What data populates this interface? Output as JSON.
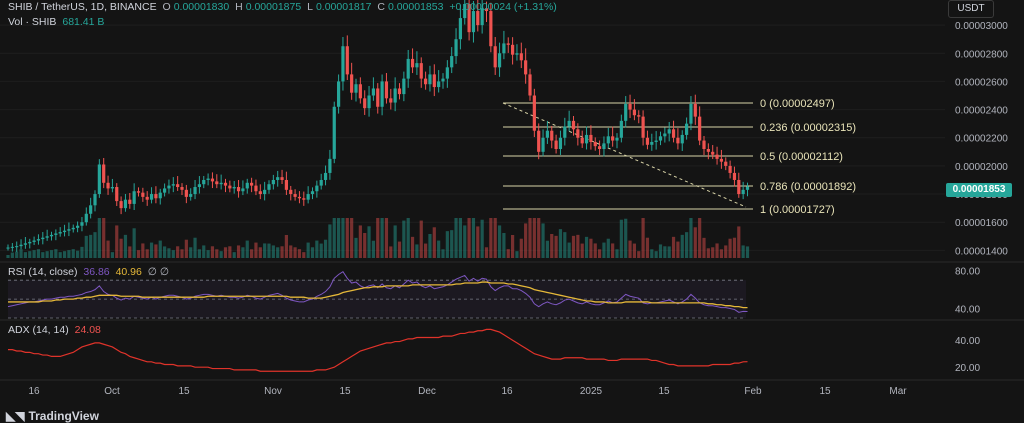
{
  "header": {
    "symbol": "SHIB / TetherUS, 1D, BINANCE",
    "o_label": "O",
    "o_value": "0.00001830",
    "h_label": "H",
    "h_value": "0.00001875",
    "l_label": "L",
    "l_value": "0.00001817",
    "c_label": "C",
    "c_value": "0.00001853",
    "change": "+0.00000024 (+1.31%)",
    "vol_label": "Vol · SHIB",
    "vol_value": "681.41 B"
  },
  "currency_button": "USDT",
  "last_price_tag": "0.00001853",
  "rsi_header": {
    "label": "RSI (14, close)",
    "value": "36.86",
    "ma": "40.96",
    "extra": "∅ ∅"
  },
  "adx_header": {
    "label": "ADX (14, 14)",
    "value": "24.08"
  },
  "brand": "TradingView",
  "colors": {
    "up": "#26a69a",
    "down": "#ef5350",
    "fib": "#d8d3a7",
    "rsi": "#7e57c2",
    "rsi_ma": "#e5b839",
    "adx": "#e0332a"
  },
  "chart_data": [
    {
      "type": "candlestick",
      "title": "SHIB / TetherUS, 1D, BINANCE",
      "y_ticks": [
        "0.00003000",
        "0.00002800",
        "0.00002600",
        "0.00002400",
        "0.00002200",
        "0.00002000",
        "0.00001800",
        "0.00001600",
        "0.00001400"
      ],
      "x_ticks": [
        "16",
        "Oct",
        "15",
        "Nov",
        "15",
        "Dec",
        "16",
        "2025",
        "15",
        "Feb",
        "15",
        "Mar"
      ],
      "ylim": [
        1.36e-05,
        3.15e-05
      ],
      "close_series": [
        1.42e-05,
        1.425e-05,
        1.43e-05,
        1.44e-05,
        1.45e-05,
        1.46e-05,
        1.47e-05,
        1.48e-05,
        1.49e-05,
        1.5e-05,
        1.51e-05,
        1.52e-05,
        1.53e-05,
        1.54e-05,
        1.55e-05,
        1.56e-05,
        1.575e-05,
        1.6e-05,
        1.66e-05,
        1.72e-05,
        1.8e-05,
        2.01e-05,
        1.88e-05,
        1.84e-05,
        1.85e-05,
        1.75e-05,
        1.7e-05,
        1.76e-05,
        1.73e-05,
        1.82e-05,
        1.81e-05,
        1.78e-05,
        1.76e-05,
        1.8e-05,
        1.77e-05,
        1.81e-05,
        1.84e-05,
        1.86e-05,
        1.87e-05,
        1.85e-05,
        1.83e-05,
        1.78e-05,
        1.8e-05,
        1.85e-05,
        1.87e-05,
        1.9e-05,
        1.91e-05,
        1.89e-05,
        1.87e-05,
        1.88e-05,
        1.86e-05,
        1.84e-05,
        1.85e-05,
        1.82e-05,
        1.84e-05,
        1.88e-05,
        1.86e-05,
        1.82e-05,
        1.8e-05,
        1.83e-05,
        1.87e-05,
        1.9e-05,
        1.92e-05,
        1.9e-05,
        1.83e-05,
        1.8e-05,
        1.78e-05,
        1.77e-05,
        1.76e-05,
        1.8e-05,
        1.82e-05,
        1.86e-05,
        1.9e-05,
        1.95e-05,
        2.05e-05,
        2.42e-05,
        2.6e-05,
        2.85e-05,
        2.65e-05,
        2.52e-05,
        2.58e-05,
        2.48e-05,
        2.41e-05,
        2.5e-05,
        2.55e-05,
        2.42e-05,
        2.6e-05,
        2.48e-05,
        2.45e-05,
        2.55e-05,
        2.51e-05,
        2.62e-05,
        2.76e-05,
        2.7e-05,
        2.73e-05,
        2.62e-05,
        2.58e-05,
        2.65e-05,
        2.56e-05,
        2.6e-05,
        2.62e-05,
        2.7e-05,
        2.78e-05,
        2.9e-05,
        3.05e-05,
        3.15e-05,
        2.95e-05,
        3.1e-05,
        3e-05,
        3.12e-05,
        3.1e-05,
        2.85e-05,
        2.7e-05,
        2.8e-05,
        2.87e-05,
        2.86e-05,
        2.79e-05,
        2.8e-05,
        2.75e-05,
        2.65e-05,
        2.5e-05,
        2.25e-05,
        2.1e-05,
        2.2e-05,
        2.25e-05,
        2.18e-05,
        2.12e-05,
        2.2e-05,
        2.28e-05,
        2.32e-05,
        2.26e-05,
        2.2e-05,
        2.16e-05,
        2.22e-05,
        2.17e-05,
        2.14e-05,
        2.12e-05,
        2.16e-05,
        2.21e-05,
        2.18e-05,
        2.2e-05,
        2.32e-05,
        2.44e-05,
        2.4e-05,
        2.36e-05,
        2.35e-05,
        2.2e-05,
        2.15e-05,
        2.17e-05,
        2.18e-05,
        2.21e-05,
        2.23e-05,
        2.26e-05,
        2.2e-05,
        2.16e-05,
        2.22e-05,
        2.3e-05,
        2.44e-05,
        2.35e-05,
        2.18e-05,
        2.12e-05,
        2.1e-05,
        2.08e-05,
        2.05e-05,
        2.03e-05,
        2e-05,
        1.95e-05,
        1.9e-05,
        1.8e-05,
        1.83e-05,
        1.853e-05
      ]
    },
    {
      "type": "line",
      "title": "RSI (14, close)",
      "y_ticks": [
        "80.00",
        "40.00"
      ],
      "ylim": [
        30,
        85
      ],
      "series": [
        {
          "name": "RSI",
          "values": [
            42,
            43,
            44,
            45,
            46,
            47,
            47,
            48,
            49,
            50,
            50,
            51,
            52,
            52,
            53,
            53,
            54,
            55,
            57,
            58,
            60,
            64,
            58,
            55,
            54,
            51,
            49,
            51,
            50,
            53,
            52,
            51,
            50,
            52,
            50,
            52,
            53,
            54,
            54,
            53,
            52,
            50,
            51,
            53,
            54,
            55,
            55,
            54,
            53,
            54,
            53,
            52,
            52,
            51,
            52,
            54,
            53,
            51,
            50,
            52,
            54,
            55,
            56,
            54,
            51,
            49,
            48,
            47,
            47,
            49,
            50,
            53,
            55,
            58,
            63,
            72,
            76,
            79,
            72,
            67,
            68,
            64,
            62,
            64,
            65,
            62,
            66,
            62,
            61,
            64,
            62,
            66,
            70,
            67,
            68,
            64,
            62,
            64,
            61,
            62,
            63,
            65,
            68,
            71,
            73,
            75,
            69,
            72,
            69,
            72,
            71,
            63,
            59,
            62,
            64,
            64,
            61,
            61,
            59,
            56,
            52,
            45,
            42,
            45,
            47,
            45,
            44,
            46,
            49,
            50,
            48,
            46,
            45,
            47,
            45,
            44,
            44,
            46,
            48,
            46,
            47,
            51,
            55,
            53,
            52,
            51,
            46,
            45,
            46,
            46,
            47,
            48,
            49,
            47,
            45,
            47,
            50,
            55,
            51,
            46,
            44,
            43,
            43,
            42,
            41,
            41,
            40,
            39,
            36,
            37,
            36.86
          ]
        },
        {
          "name": "RSI MA",
          "values": [
            47,
            47,
            47,
            47,
            47,
            47,
            47,
            47,
            48,
            48,
            48,
            49,
            49,
            50,
            50,
            50,
            51,
            51,
            52,
            52,
            53,
            54,
            54,
            54,
            54,
            54,
            53,
            53,
            53,
            53,
            53,
            52,
            52,
            52,
            52,
            52,
            52,
            52,
            52,
            52,
            52,
            52,
            52,
            52,
            52,
            52,
            53,
            53,
            53,
            53,
            53,
            53,
            53,
            53,
            53,
            53,
            53,
            53,
            53,
            53,
            53,
            53,
            53,
            53,
            53,
            52,
            52,
            52,
            52,
            51,
            51,
            51,
            51,
            52,
            53,
            54,
            55,
            57,
            58,
            59,
            60,
            61,
            62,
            62,
            63,
            63,
            63,
            64,
            64,
            64,
            64,
            64,
            64,
            65,
            65,
            65,
            65,
            65,
            65,
            65,
            65,
            65,
            65,
            66,
            66,
            67,
            67,
            67,
            67,
            68,
            68,
            67,
            67,
            67,
            67,
            66,
            66,
            65,
            64,
            63,
            62,
            60,
            59,
            58,
            57,
            56,
            55,
            54,
            53,
            52,
            51,
            50,
            49,
            48,
            48,
            47,
            47,
            47,
            46,
            46,
            46,
            46,
            47,
            47,
            47,
            47,
            47,
            47,
            46,
            46,
            46,
            46,
            46,
            46,
            46,
            46,
            46,
            46,
            46,
            46,
            46,
            45,
            45,
            44,
            44,
            43,
            43,
            42,
            42,
            41,
            40.96
          ]
        }
      ]
    },
    {
      "type": "line",
      "title": "ADX (14, 14)",
      "y_ticks": [
        "40.00",
        "20.00"
      ],
      "ylim": [
        12,
        52
      ],
      "series": [
        {
          "name": "ADX",
          "values": [
            33,
            33,
            32,
            32,
            31,
            31,
            30,
            30,
            29,
            29,
            28,
            28,
            28,
            29,
            30,
            31,
            33,
            35,
            36,
            37,
            38,
            38,
            37,
            36,
            35,
            33,
            31,
            30,
            28,
            27,
            26,
            25,
            24,
            24,
            23,
            23,
            22,
            22,
            22,
            21,
            21,
            21,
            21,
            20,
            20,
            20,
            20,
            19,
            19,
            19,
            19,
            19,
            18,
            18,
            18,
            18,
            18,
            18,
            17,
            17,
            17,
            17,
            17,
            17,
            17,
            17,
            17,
            17,
            17,
            17,
            17,
            18,
            18,
            18,
            19,
            20,
            22,
            24,
            26,
            28,
            30,
            32,
            33,
            34,
            35,
            36,
            37,
            38,
            38,
            39,
            39,
            40,
            41,
            41,
            42,
            42,
            42,
            42,
            42,
            42,
            43,
            43,
            43,
            44,
            45,
            45,
            46,
            46,
            47,
            47,
            48,
            48,
            47,
            46,
            44,
            42,
            40,
            38,
            36,
            34,
            32,
            30,
            29,
            28,
            27,
            26,
            26,
            26,
            27,
            27,
            27,
            27,
            27,
            26,
            26,
            26,
            26,
            26,
            25,
            25,
            25,
            26,
            26,
            26,
            26,
            26,
            26,
            26,
            25,
            25,
            24,
            23,
            22,
            22,
            21,
            21,
            21,
            21,
            21,
            21,
            21,
            21,
            22,
            22,
            22,
            22,
            22,
            23,
            23,
            24,
            24.08
          ]
        }
      ]
    }
  ]
}
